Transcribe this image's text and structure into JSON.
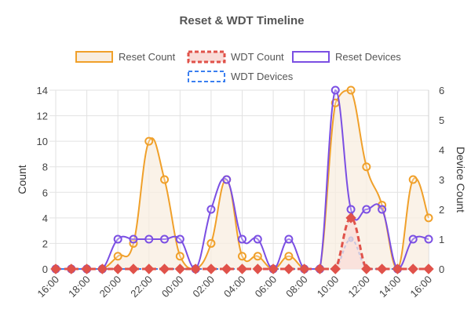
{
  "chart_data": {
    "type": "line",
    "title": "Reset & WDT Timeline",
    "x": [
      "16:00",
      "17:00",
      "18:00",
      "19:00",
      "20:00",
      "21:00",
      "22:00",
      "23:00",
      "00:00",
      "01:00",
      "02:00",
      "03:00",
      "04:00",
      "05:00",
      "06:00",
      "07:00",
      "08:00",
      "09:00",
      "10:00",
      "11:00",
      "12:00",
      "13:00",
      "14:00",
      "15:00",
      "16:00"
    ],
    "xtick_labels": [
      "16:00",
      "18:00",
      "20:00",
      "22:00",
      "00:00",
      "02:00",
      "04:00",
      "06:00",
      "08:00",
      "10:00",
      "12:00",
      "14:00",
      "16:00"
    ],
    "ylabel": "Count",
    "y2label": "Device Count",
    "ylim": [
      0,
      14
    ],
    "y2lim": [
      0,
      6
    ],
    "yticks": [
      "0",
      "2",
      "4",
      "6",
      "8",
      "10",
      "12",
      "14"
    ],
    "y2ticks": [
      "0",
      "1",
      "2",
      "3",
      "4",
      "5",
      "6"
    ],
    "grid": true,
    "legend_position": "top",
    "series": [
      {
        "name": "Reset Count",
        "axis": "left",
        "color": "#f0a02a",
        "fill": "#f8ede0",
        "dashed": false,
        "marker": "circle",
        "values": [
          0,
          0,
          0,
          0,
          1,
          2,
          10,
          7,
          1,
          0,
          2,
          7,
          1,
          1,
          0,
          1,
          0,
          0,
          13,
          14,
          8,
          5,
          0,
          7,
          4
        ]
      },
      {
        "name": "WDT Count",
        "axis": "left",
        "color": "#e0524a",
        "fill": "#f9dcd8",
        "dashed": true,
        "marker": "diamond",
        "values": [
          0,
          0,
          0,
          0,
          0,
          0,
          0,
          0,
          0,
          0,
          0,
          0,
          0,
          0,
          0,
          0,
          0,
          0,
          0,
          4,
          0,
          0,
          0,
          0,
          0
        ]
      },
      {
        "name": "Reset Devices",
        "axis": "right",
        "color": "#7b4fe3",
        "fill": "none",
        "dashed": false,
        "marker": "circle",
        "values": [
          0,
          0,
          0,
          0,
          1,
          1,
          1,
          1,
          1,
          0,
          2,
          3,
          1,
          1,
          0,
          1,
          0,
          0,
          6,
          2,
          2,
          2,
          0,
          1,
          1
        ]
      },
      {
        "name": "WDT Devices",
        "axis": "right",
        "color": "#3b7ff0",
        "fill": "none",
        "dashed": true,
        "marker": "circle",
        "values": [
          0,
          0,
          0,
          0,
          0,
          0,
          0,
          0,
          0,
          0,
          0,
          0,
          0,
          0,
          0,
          0,
          0,
          0,
          0,
          1,
          0,
          0,
          0,
          0,
          0
        ]
      }
    ]
  }
}
